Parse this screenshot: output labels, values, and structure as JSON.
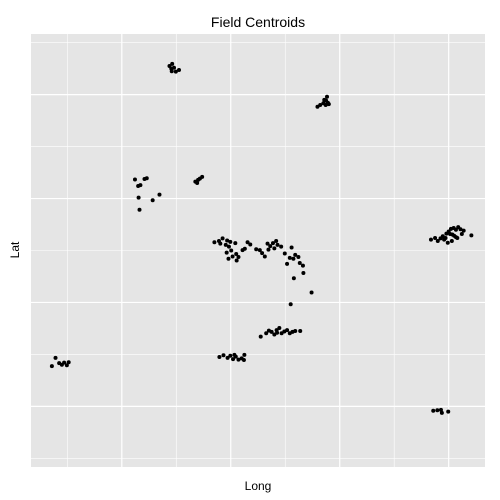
{
  "chart_data": {
    "type": "scatter",
    "title": "Field Centroids",
    "xlabel": "Long",
    "ylabel": "Lat",
    "grid": true,
    "panel_background": "#e5e5e5",
    "grid_color": "#ffffff",
    "point_color": "#000000",
    "xlim": [
      0,
      100
    ],
    "ylim": [
      0,
      100
    ],
    "major_x_grid": [
      20,
      44,
      68,
      92
    ],
    "minor_x_grid": [
      8,
      32,
      56,
      80
    ],
    "major_y_grid": [
      14,
      38,
      62,
      86
    ],
    "minor_y_grid": [
      2,
      26,
      50,
      74,
      98
    ],
    "points": [
      {
        "x": 30.5,
        "y": 92.6
      },
      {
        "x": 31.1,
        "y": 93.1
      },
      {
        "x": 31.5,
        "y": 92.2
      },
      {
        "x": 31.9,
        "y": 91.3
      },
      {
        "x": 32.6,
        "y": 91.7
      },
      {
        "x": 31.0,
        "y": 91.4
      },
      {
        "x": 30.9,
        "y": 92.0
      },
      {
        "x": 63.1,
        "y": 83.2
      },
      {
        "x": 63.7,
        "y": 83.6
      },
      {
        "x": 64.4,
        "y": 84.0
      },
      {
        "x": 64.9,
        "y": 83.6
      },
      {
        "x": 65.4,
        "y": 84.1
      },
      {
        "x": 65.0,
        "y": 84.6
      },
      {
        "x": 65.2,
        "y": 85.5
      },
      {
        "x": 65.6,
        "y": 83.8
      },
      {
        "x": 64.6,
        "y": 84.8
      },
      {
        "x": 22.9,
        "y": 66.4
      },
      {
        "x": 24.1,
        "y": 65.1
      },
      {
        "x": 25.0,
        "y": 66.5
      },
      {
        "x": 25.5,
        "y": 66.7
      },
      {
        "x": 23.6,
        "y": 64.9
      },
      {
        "x": 23.7,
        "y": 62.2
      },
      {
        "x": 26.8,
        "y": 61.6
      },
      {
        "x": 28.3,
        "y": 62.9
      },
      {
        "x": 23.9,
        "y": 59.4
      },
      {
        "x": 36.2,
        "y": 65.9
      },
      {
        "x": 36.8,
        "y": 66.3
      },
      {
        "x": 37.2,
        "y": 66.6
      },
      {
        "x": 37.7,
        "y": 67.0
      },
      {
        "x": 36.6,
        "y": 65.6
      },
      {
        "x": 40.4,
        "y": 51.9
      },
      {
        "x": 41.4,
        "y": 52.2
      },
      {
        "x": 42.2,
        "y": 52.8
      },
      {
        "x": 43.2,
        "y": 52.3
      },
      {
        "x": 43.9,
        "y": 52.0
      },
      {
        "x": 41.7,
        "y": 51.6
      },
      {
        "x": 42.9,
        "y": 51.3
      },
      {
        "x": 43.6,
        "y": 50.9
      },
      {
        "x": 45.0,
        "y": 51.7
      },
      {
        "x": 44.1,
        "y": 50.0
      },
      {
        "x": 43.1,
        "y": 49.5
      },
      {
        "x": 45.2,
        "y": 49.2
      },
      {
        "x": 46.6,
        "y": 50.1
      },
      {
        "x": 45.7,
        "y": 48.5
      },
      {
        "x": 44.4,
        "y": 48.6
      },
      {
        "x": 45.3,
        "y": 47.7
      },
      {
        "x": 43.5,
        "y": 48.1
      },
      {
        "x": 47.7,
        "y": 51.9
      },
      {
        "x": 48.3,
        "y": 51.4
      },
      {
        "x": 47.1,
        "y": 50.4
      },
      {
        "x": 49.6,
        "y": 50.3
      },
      {
        "x": 50.4,
        "y": 50.1
      },
      {
        "x": 50.9,
        "y": 49.4
      },
      {
        "x": 51.5,
        "y": 48.6
      },
      {
        "x": 52.1,
        "y": 51.6
      },
      {
        "x": 52.7,
        "y": 51.0
      },
      {
        "x": 53.3,
        "y": 51.7
      },
      {
        "x": 53.6,
        "y": 50.5
      },
      {
        "x": 54.3,
        "y": 51.3
      },
      {
        "x": 55.1,
        "y": 50.9
      },
      {
        "x": 54.0,
        "y": 52.2
      },
      {
        "x": 52.3,
        "y": 50.2
      },
      {
        "x": 55.9,
        "y": 49.3
      },
      {
        "x": 57.0,
        "y": 48.3
      },
      {
        "x": 57.8,
        "y": 48.1
      },
      {
        "x": 57.4,
        "y": 50.7
      },
      {
        "x": 58.2,
        "y": 49.0
      },
      {
        "x": 58.9,
        "y": 48.5
      },
      {
        "x": 59.2,
        "y": 47.1
      },
      {
        "x": 59.9,
        "y": 46.5
      },
      {
        "x": 56.4,
        "y": 46.9
      },
      {
        "x": 57.9,
        "y": 43.6
      },
      {
        "x": 60.0,
        "y": 44.8
      },
      {
        "x": 61.8,
        "y": 40.3
      },
      {
        "x": 57.2,
        "y": 37.6
      },
      {
        "x": 50.6,
        "y": 30.1
      },
      {
        "x": 51.8,
        "y": 30.9
      },
      {
        "x": 52.4,
        "y": 31.5
      },
      {
        "x": 53.0,
        "y": 31.2
      },
      {
        "x": 53.6,
        "y": 30.6
      },
      {
        "x": 54.1,
        "y": 31.6
      },
      {
        "x": 54.7,
        "y": 32.1
      },
      {
        "x": 55.2,
        "y": 30.9
      },
      {
        "x": 55.8,
        "y": 31.3
      },
      {
        "x": 56.4,
        "y": 31.6
      },
      {
        "x": 57.0,
        "y": 30.9
      },
      {
        "x": 57.6,
        "y": 31.2
      },
      {
        "x": 58.2,
        "y": 31.4
      },
      {
        "x": 59.3,
        "y": 31.4
      },
      {
        "x": 54.2,
        "y": 31.0
      },
      {
        "x": 41.5,
        "y": 25.4
      },
      {
        "x": 42.4,
        "y": 25.8
      },
      {
        "x": 43.3,
        "y": 25.2
      },
      {
        "x": 43.9,
        "y": 25.7
      },
      {
        "x": 44.5,
        "y": 24.9
      },
      {
        "x": 45.1,
        "y": 25.5
      },
      {
        "x": 45.7,
        "y": 24.8
      },
      {
        "x": 46.4,
        "y": 25.1
      },
      {
        "x": 46.9,
        "y": 24.7
      },
      {
        "x": 47.0,
        "y": 25.9
      },
      {
        "x": 44.8,
        "y": 25.9
      },
      {
        "x": 4.6,
        "y": 23.3
      },
      {
        "x": 5.4,
        "y": 25.2
      },
      {
        "x": 6.2,
        "y": 24.0
      },
      {
        "x": 6.8,
        "y": 23.6
      },
      {
        "x": 7.3,
        "y": 24.1
      },
      {
        "x": 7.9,
        "y": 23.5
      },
      {
        "x": 8.3,
        "y": 24.2
      },
      {
        "x": 88.1,
        "y": 52.5
      },
      {
        "x": 89.0,
        "y": 52.9
      },
      {
        "x": 89.6,
        "y": 52.2
      },
      {
        "x": 90.2,
        "y": 52.8
      },
      {
        "x": 90.7,
        "y": 53.3
      },
      {
        "x": 91.0,
        "y": 52.5
      },
      {
        "x": 91.5,
        "y": 53.9
      },
      {
        "x": 92.0,
        "y": 54.4
      },
      {
        "x": 92.5,
        "y": 55.0
      },
      {
        "x": 93.1,
        "y": 55.2
      },
      {
        "x": 93.6,
        "y": 54.8
      },
      {
        "x": 94.1,
        "y": 55.4
      },
      {
        "x": 94.6,
        "y": 54.9
      },
      {
        "x": 95.3,
        "y": 54.6
      },
      {
        "x": 97.0,
        "y": 53.5
      },
      {
        "x": 92.3,
        "y": 53.8
      },
      {
        "x": 93.2,
        "y": 53.4
      },
      {
        "x": 92.7,
        "y": 52.2
      },
      {
        "x": 91.8,
        "y": 51.8
      },
      {
        "x": 93.9,
        "y": 52.9
      },
      {
        "x": 94.9,
        "y": 53.8
      },
      {
        "x": 91.3,
        "y": 52.9
      },
      {
        "x": 92.8,
        "y": 53.7
      },
      {
        "x": 93.6,
        "y": 53.1
      },
      {
        "x": 88.6,
        "y": 13.0
      },
      {
        "x": 89.5,
        "y": 13.1
      },
      {
        "x": 90.3,
        "y": 13.2
      },
      {
        "x": 90.5,
        "y": 12.5
      },
      {
        "x": 91.9,
        "y": 12.8
      }
    ]
  }
}
